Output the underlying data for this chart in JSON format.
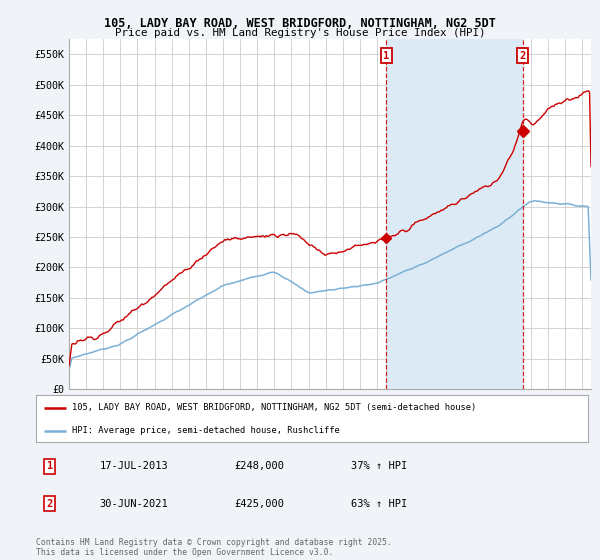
{
  "title1": "105, LADY BAY ROAD, WEST BRIDGFORD, NOTTINGHAM, NG2 5DT",
  "title2": "Price paid vs. HM Land Registry's House Price Index (HPI)",
  "ylabel_ticks": [
    "£0",
    "£50K",
    "£100K",
    "£150K",
    "£200K",
    "£250K",
    "£300K",
    "£350K",
    "£400K",
    "£450K",
    "£500K",
    "£550K"
  ],
  "ytick_vals": [
    0,
    50000,
    100000,
    150000,
    200000,
    250000,
    300000,
    350000,
    400000,
    450000,
    500000,
    550000
  ],
  "ylim": [
    0,
    575000
  ],
  "xlim_start": 1995.0,
  "xlim_end": 2025.5,
  "xticks": [
    1995,
    1996,
    1997,
    1998,
    1999,
    2000,
    2001,
    2002,
    2003,
    2004,
    2005,
    2006,
    2007,
    2008,
    2009,
    2010,
    2011,
    2012,
    2013,
    2014,
    2015,
    2016,
    2017,
    2018,
    2019,
    2020,
    2021,
    2022,
    2023,
    2024,
    2025
  ],
  "red_color": "#cc0000",
  "blue_color": "#7ab0d4",
  "shade_color": "#dceaf5",
  "point1_x": 2013.54,
  "point1_y": 248000,
  "point2_x": 2021.5,
  "point2_y": 425000,
  "legend_line1": "105, LADY BAY ROAD, WEST BRIDGFORD, NOTTINGHAM, NG2 5DT (semi-detached house)",
  "legend_line2": "HPI: Average price, semi-detached house, Rushcliffe",
  "table_row1": [
    "1",
    "17-JUL-2013",
    "£248,000",
    "37% ↑ HPI"
  ],
  "table_row2": [
    "2",
    "30-JUN-2021",
    "£425,000",
    "63% ↑ HPI"
  ],
  "footer": "Contains HM Land Registry data © Crown copyright and database right 2025.\nThis data is licensed under the Open Government Licence v3.0.",
  "bg_color": "#f0f4f8",
  "plot_bg_color": "#ffffff",
  "grid_color": "#cccccc"
}
